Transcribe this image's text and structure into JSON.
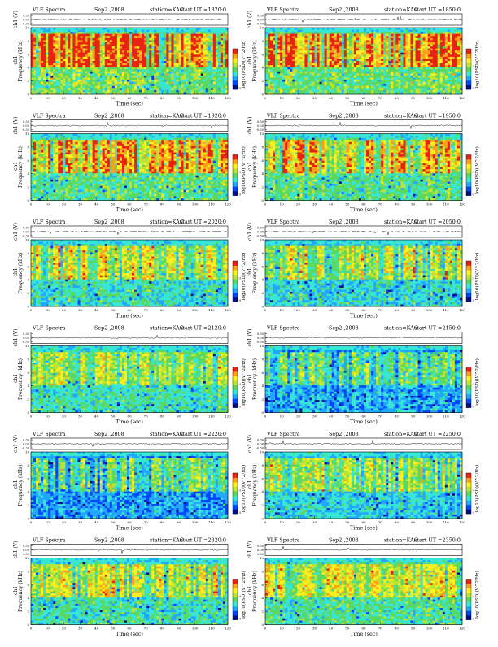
{
  "panel_text": {
    "title": "VLF Spectra",
    "date": "Sep2 ,2008",
    "station": "station=KAG",
    "start_prefix": "start  UT =",
    "trace_ylabel": "ch1 (V)",
    "spec_ylabel_ch": "ch1",
    "spec_ylabel": "Frequency  (kHz)",
    "xlabel": "Time  (sec)",
    "cbar_label": "log10(PSD)(V^2/Hz)"
  },
  "trace_ticks": [
    "0.30",
    "0.00",
    "-0.30"
  ],
  "freq_ticks": [
    "0",
    "2",
    "4",
    "6",
    "8",
    "10"
  ],
  "time_ticks": [
    "0",
    "10",
    "20",
    "30",
    "40",
    "50",
    "60",
    "70",
    "80",
    "90",
    "100",
    "110",
    "120"
  ],
  "cbar_ticks": [
    "-5",
    "-3"
  ],
  "colors": {
    "colormap": [
      "#00108a",
      "#0046ff",
      "#22a7ff",
      "#38e6d6",
      "#5ad860",
      "#bde432",
      "#ffef1e",
      "#ff9f1a",
      "#e72312"
    ],
    "trace_line": "#000000"
  },
  "chart_data": [
    {
      "type": "heatmap",
      "start_ut": "1820:0",
      "xlim": [
        0,
        120
      ],
      "ylim": [
        0,
        10
      ],
      "trace_ylim": [
        -0.3,
        0.3
      ],
      "activity": 0.9,
      "quiet_floor": 0.42
    },
    {
      "type": "heatmap",
      "start_ut": "1850:0",
      "xlim": [
        0,
        120
      ],
      "ylim": [
        0,
        10
      ],
      "trace_ylim": [
        -0.3,
        0.3
      ],
      "activity": 0.85,
      "quiet_floor": 0.42
    },
    {
      "type": "heatmap",
      "start_ut": "1920:0",
      "xlim": [
        0,
        120
      ],
      "ylim": [
        0,
        10
      ],
      "trace_ylim": [
        -0.3,
        0.3
      ],
      "activity": 0.75,
      "quiet_floor": 0.4
    },
    {
      "type": "heatmap",
      "start_ut": "1950:0",
      "xlim": [
        0,
        120
      ],
      "ylim": [
        0,
        10
      ],
      "trace_ylim": [
        -0.3,
        0.3
      ],
      "activity": 0.72,
      "quiet_floor": 0.4
    },
    {
      "type": "heatmap",
      "start_ut": "2020:0",
      "xlim": [
        0,
        120
      ],
      "ylim": [
        0,
        10
      ],
      "trace_ylim": [
        -0.3,
        0.3
      ],
      "activity": 0.62,
      "quiet_floor": 0.34
    },
    {
      "type": "heatmap",
      "start_ut": "2050:0",
      "xlim": [
        0,
        120
      ],
      "ylim": [
        0,
        10
      ],
      "trace_ylim": [
        -0.3,
        0.3
      ],
      "activity": 0.58,
      "quiet_floor": 0.32
    },
    {
      "type": "heatmap",
      "start_ut": "2120:0",
      "xlim": [
        0,
        120
      ],
      "ylim": [
        0,
        10
      ],
      "trace_ylim": [
        -0.3,
        0.3
      ],
      "activity": 0.45,
      "quiet_floor": 0.38
    },
    {
      "type": "heatmap",
      "start_ut": "2150:0",
      "xlim": [
        0,
        120
      ],
      "ylim": [
        0,
        10
      ],
      "trace_ylim": [
        -0.3,
        0.3
      ],
      "activity": 0.5,
      "quiet_floor": 0.24
    },
    {
      "type": "heatmap",
      "start_ut": "2220:0",
      "xlim": [
        0,
        120
      ],
      "ylim": [
        0,
        10
      ],
      "trace_ylim": [
        -0.3,
        0.3
      ],
      "activity": 0.55,
      "quiet_floor": 0.22
    },
    {
      "type": "heatmap",
      "start_ut": "2250:0",
      "xlim": [
        0,
        120
      ],
      "ylim": [
        0,
        10
      ],
      "trace_ylim": [
        -0.3,
        0.3
      ],
      "activity": 0.55,
      "quiet_floor": 0.3
    },
    {
      "type": "heatmap",
      "start_ut": "2320:0",
      "xlim": [
        0,
        120
      ],
      "ylim": [
        0,
        10
      ],
      "trace_ylim": [
        -0.3,
        0.3
      ],
      "activity": 0.55,
      "quiet_floor": 0.36
    },
    {
      "type": "heatmap",
      "start_ut": "2350:0",
      "xlim": [
        0,
        120
      ],
      "ylim": [
        0,
        10
      ],
      "trace_ylim": [
        -0.3,
        0.3
      ],
      "activity": 0.5,
      "quiet_floor": 0.4
    }
  ]
}
